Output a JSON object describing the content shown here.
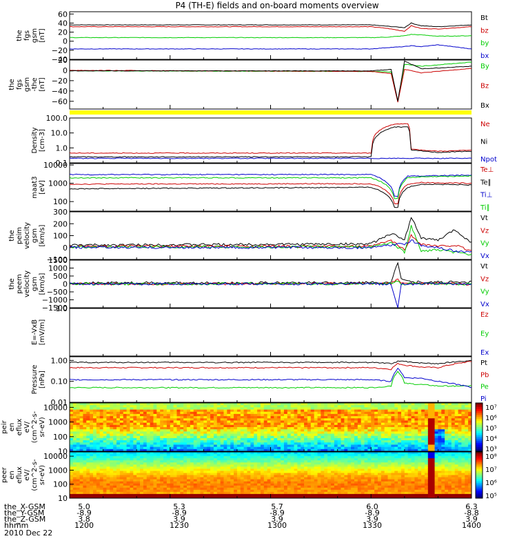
{
  "title": "P4 (TH-E) fields and on-board moments overview",
  "colors": {
    "black": "#000000",
    "red": "#cc0000",
    "green": "#00cc00",
    "blue": "#0000cc",
    "yellow": "#ffff00"
  },
  "footer": {
    "rows": [
      {
        "label": "the_X-GSM",
        "values": [
          "5.0",
          "5.3",
          "5.7",
          "6.0",
          "6.3"
        ]
      },
      {
        "label": "the_Y-GSM",
        "values": [
          "-8.9",
          "-8.9",
          "-8.9",
          "-8.9",
          "-8.8"
        ]
      },
      {
        "label": "the_Z-GSM",
        "values": [
          "3.8",
          "3.9",
          "3.9",
          "3.9",
          "3.9"
        ]
      },
      {
        "label": "hhmm",
        "values": [
          "1200",
          "1230",
          "1300",
          "1330",
          "1400"
        ]
      }
    ],
    "date": "2010 Dec 22"
  },
  "chart_data": [
    {
      "type": "line",
      "id": "fgs_gsm",
      "ylabel": [
        "the",
        "fgs",
        "gsm",
        "[nT]"
      ],
      "ylim": [
        -40,
        65
      ],
      "ticks": [
        "60",
        "40",
        "20",
        "0",
        "−20",
        "−40"
      ],
      "tick_values": [
        60,
        40,
        20,
        0,
        -20,
        -40
      ],
      "legend": [
        {
          "name": "Bt",
          "color": "black"
        },
        {
          "name": "bz",
          "color": "red"
        },
        {
          "name": "by",
          "color": "green"
        },
        {
          "name": "bx",
          "color": "blue"
        }
      ],
      "time_hhmm": [
        1200,
        1330,
        1335,
        1340,
        1342,
        1345,
        1350,
        1400
      ],
      "series": [
        {
          "name": "Bt",
          "values": [
            36,
            36,
            33,
            30,
            40,
            34,
            32,
            36
          ]
        },
        {
          "name": "bz",
          "values": [
            32,
            32,
            28,
            22,
            34,
            28,
            27,
            32
          ]
        },
        {
          "name": "by",
          "values": [
            8,
            8,
            9,
            12,
            15,
            14,
            11,
            12
          ]
        },
        {
          "name": "bx",
          "values": [
            -17,
            -17,
            -14,
            -12,
            -10,
            -12,
            -8,
            -17
          ]
        }
      ]
    },
    {
      "type": "line",
      "id": "fgs_gse",
      "ylabel": [
        "the",
        "fgs",
        "gsm",
        "-the",
        "[nT]"
      ],
      "ylim": [
        -75,
        20
      ],
      "ticks": [
        "20",
        "0",
        "−20",
        "−40",
        "−60"
      ],
      "tick_values": [
        20,
        0,
        -20,
        -40,
        -60
      ],
      "legend": [
        {
          "name": "By",
          "color": "green"
        },
        {
          "name": "Bz",
          "color": "red"
        },
        {
          "name": "Bx",
          "color": "black"
        }
      ],
      "time_hhmm": [
        1200,
        1330,
        1336,
        1338,
        1340,
        1345,
        1400
      ],
      "series": [
        {
          "name": "By",
          "values": [
            -1,
            -2,
            -3,
            -60,
            12,
            8,
            16
          ]
        },
        {
          "name": "Bz",
          "values": [
            0,
            -2,
            -6,
            -62,
            2,
            -5,
            4
          ]
        },
        {
          "name": "Bx",
          "values": [
            -1,
            -1,
            2,
            -60,
            18,
            3,
            8
          ]
        }
      ]
    },
    {
      "type": "line",
      "id": "density",
      "yscale": "log",
      "ylabel": [
        "Density",
        "[cm-3]"
      ],
      "ylim": [
        0.1,
        100.0
      ],
      "ticks": [
        "100.0",
        "10.0",
        "1.0",
        "0.1"
      ],
      "tick_values": [
        100,
        10,
        1,
        0.1
      ],
      "legend": [
        {
          "name": "Ne",
          "color": "red"
        },
        {
          "name": "Ni",
          "color": "black"
        },
        {
          "name": "Npot",
          "color": "blue"
        }
      ],
      "time_hhmm": [
        1200,
        1330,
        1337,
        1338,
        1341,
        1342,
        1350,
        1400
      ],
      "series": [
        {
          "name": "Ne",
          "values": [
            0.45,
            0.45,
            40,
            40,
            40,
            0.8,
            0.6,
            0.7
          ]
        },
        {
          "name": "Ni",
          "values": [
            0.25,
            0.25,
            25,
            25,
            25,
            0.7,
            0.5,
            0.6
          ]
        },
        {
          "name": "Npot",
          "values": [
            0.2,
            0.2,
            0.2,
            0.2,
            0.2,
            0.2,
            0.2,
            0.2
          ]
        }
      ]
    },
    {
      "type": "line",
      "id": "temperature",
      "yscale": "log",
      "ylabel": [
        "maat3",
        "[eV]"
      ],
      "ylim": [
        30,
        12000
      ],
      "ticks": [
        "10000",
        "1000",
        "100"
      ],
      "tick_values": [
        10000,
        1000,
        100
      ],
      "legend": [
        {
          "name": "Te⊥",
          "color": "red"
        },
        {
          "name": "Te∥",
          "color": "black"
        },
        {
          "name": "Ti⊥",
          "color": "blue"
        },
        {
          "name": "Ti∥",
          "color": "green"
        }
      ],
      "time_hhmm": [
        1200,
        1330,
        1337,
        1338,
        1341,
        1345,
        1400
      ],
      "series": [
        {
          "name": "Te⊥",
          "values": [
            900,
            950,
            80,
            80,
            900,
            1100,
            1000
          ]
        },
        {
          "name": "Te∥",
          "values": [
            500,
            600,
            50,
            50,
            600,
            900,
            800
          ]
        },
        {
          "name": "Ti⊥",
          "values": [
            3000,
            3000,
            200,
            200,
            2500,
            2500,
            2800
          ]
        },
        {
          "name": "Ti∥",
          "values": [
            2000,
            2000,
            150,
            150,
            2000,
            2200,
            2500
          ]
        }
      ]
    },
    {
      "type": "line",
      "id": "ion_velocity",
      "ylabel": [
        "the",
        "peim",
        "velocity",
        "gsm",
        "[km/s]"
      ],
      "ylim": [
        -100,
        300
      ],
      "ticks": [
        "300",
        "200",
        "100",
        "0",
        "−100"
      ],
      "tick_values": [
        300,
        200,
        100,
        0,
        -100
      ],
      "legend": [
        {
          "name": "Vt",
          "color": "black"
        },
        {
          "name": "Vz",
          "color": "red"
        },
        {
          "name": "Vy",
          "color": "green"
        },
        {
          "name": "Vx",
          "color": "blue"
        }
      ],
      "time_hhmm": [
        1200,
        1330,
        1336,
        1340,
        1342,
        1345,
        1350,
        1355,
        1400
      ],
      "series": [
        {
          "name": "Vt",
          "values": [
            20,
            30,
            120,
            60,
            260,
            80,
            60,
            150,
            40
          ]
        },
        {
          "name": "Vz",
          "values": [
            10,
            10,
            60,
            -20,
            100,
            30,
            10,
            20,
            -30
          ]
        },
        {
          "name": "Vy",
          "values": [
            5,
            5,
            40,
            -40,
            180,
            -30,
            -20,
            -40,
            -60
          ]
        },
        {
          "name": "Vx",
          "values": [
            0,
            0,
            20,
            30,
            60,
            20,
            0,
            -30,
            -40
          ]
        }
      ]
    },
    {
      "type": "line",
      "id": "electron_velocity",
      "ylabel": [
        "the",
        "peem",
        "velocity",
        "gsm",
        "[km/s]"
      ],
      "ylim": [
        -1500,
        1500
      ],
      "ticks": [
        "1500",
        "1000",
        "500",
        "0",
        "−500",
        "−1000",
        "−1500"
      ],
      "tick_values": [
        1500,
        1000,
        500,
        0,
        -500,
        -1000,
        -1500
      ],
      "legend": [
        {
          "name": "Vt",
          "color": "black"
        },
        {
          "name": "Vz",
          "color": "red"
        },
        {
          "name": "Vy",
          "color": "green"
        },
        {
          "name": "Vx",
          "color": "blue"
        }
      ],
      "time_hhmm": [
        1200,
        1336,
        1338,
        1339,
        1342,
        1400
      ],
      "series": [
        {
          "name": "Vt",
          "values": [
            60,
            80,
            1400,
            300,
            120,
            100
          ]
        },
        {
          "name": "Vz",
          "values": [
            0,
            20,
            300,
            0,
            20,
            0
          ]
        },
        {
          "name": "Vy",
          "values": [
            0,
            20,
            200,
            0,
            20,
            0
          ]
        },
        {
          "name": "Vx",
          "values": [
            0,
            0,
            -1500,
            0,
            0,
            0
          ]
        }
      ]
    },
    {
      "type": "line",
      "id": "efield",
      "ylabel": [
        "E=-VxB",
        "[mV/m]"
      ],
      "ylim": [
        -1,
        1
      ],
      "ticks": [
        "1.0"
      ],
      "tick_values": [
        1
      ],
      "legend": [
        {
          "name": "Ez",
          "color": "red"
        },
        {
          "name": "Ey",
          "color": "green"
        },
        {
          "name": "Ex",
          "color": "blue"
        }
      ],
      "series": []
    },
    {
      "type": "line",
      "id": "pressure",
      "yscale": "log",
      "ylabel": [
        "Pressure",
        "[nPa]"
      ],
      "ylim": [
        0.01,
        1.5
      ],
      "ticks": [
        "1.00",
        "0.10",
        "0.01"
      ],
      "tick_values": [
        1,
        0.1,
        0.01
      ],
      "legend": [
        {
          "name": "Pt",
          "color": "black"
        },
        {
          "name": "Pb",
          "color": "red"
        },
        {
          "name": "Pe",
          "color": "green"
        },
        {
          "name": "Pi",
          "color": "blue"
        }
      ],
      "time_hhmm": [
        1200,
        1330,
        1336,
        1338,
        1340,
        1345,
        1350,
        1400
      ],
      "series": [
        {
          "name": "Pt",
          "values": [
            0.8,
            0.8,
            0.7,
            0.9,
            0.9,
            0.75,
            0.7,
            1.0
          ]
        },
        {
          "name": "Pb",
          "values": [
            0.45,
            0.45,
            0.38,
            0.7,
            0.6,
            0.48,
            0.45,
            0.9
          ]
        },
        {
          "name": "Pe",
          "values": [
            0.05,
            0.05,
            0.06,
            0.3,
            0.08,
            0.07,
            0.06,
            0.06
          ]
        },
        {
          "name": "Pi",
          "values": [
            0.12,
            0.12,
            0.1,
            0.4,
            0.15,
            0.14,
            0.1,
            0.05
          ]
        }
      ]
    },
    {
      "type": "heatmap",
      "id": "ion_spectrogram",
      "yscale": "log",
      "ylabel": [
        "the",
        "peir",
        "en",
        "eflux",
        "eV/",
        "(cm^2-s-",
        "sr-eV)"
      ],
      "ylim": [
        10,
        20000
      ],
      "ticks": [
        "10000",
        "1000",
        "100",
        "10"
      ],
      "tick_values": [
        10000,
        1000,
        100,
        10
      ],
      "colorbar": {
        "ticks": [
          "10⁷",
          "10⁶",
          "10⁵",
          "10⁴",
          "10³"
        ],
        "range": [
          3,
          7
        ]
      }
    },
    {
      "type": "heatmap",
      "id": "electron_spectrogram",
      "yscale": "log",
      "ylabel": [
        "the",
        "peer",
        "en",
        "eflux",
        "eV/",
        "(cm^2-s-",
        "sr-eV)"
      ],
      "ylim": [
        10,
        20000
      ],
      "ticks": [
        "10000",
        "1000",
        "100",
        "10"
      ],
      "tick_values": [
        10000,
        1000,
        100,
        10
      ],
      "colorbar": {
        "ticks": [
          "10⁸",
          "10⁷",
          "10⁶",
          "10⁵"
        ],
        "range": [
          5,
          8
        ]
      }
    }
  ]
}
